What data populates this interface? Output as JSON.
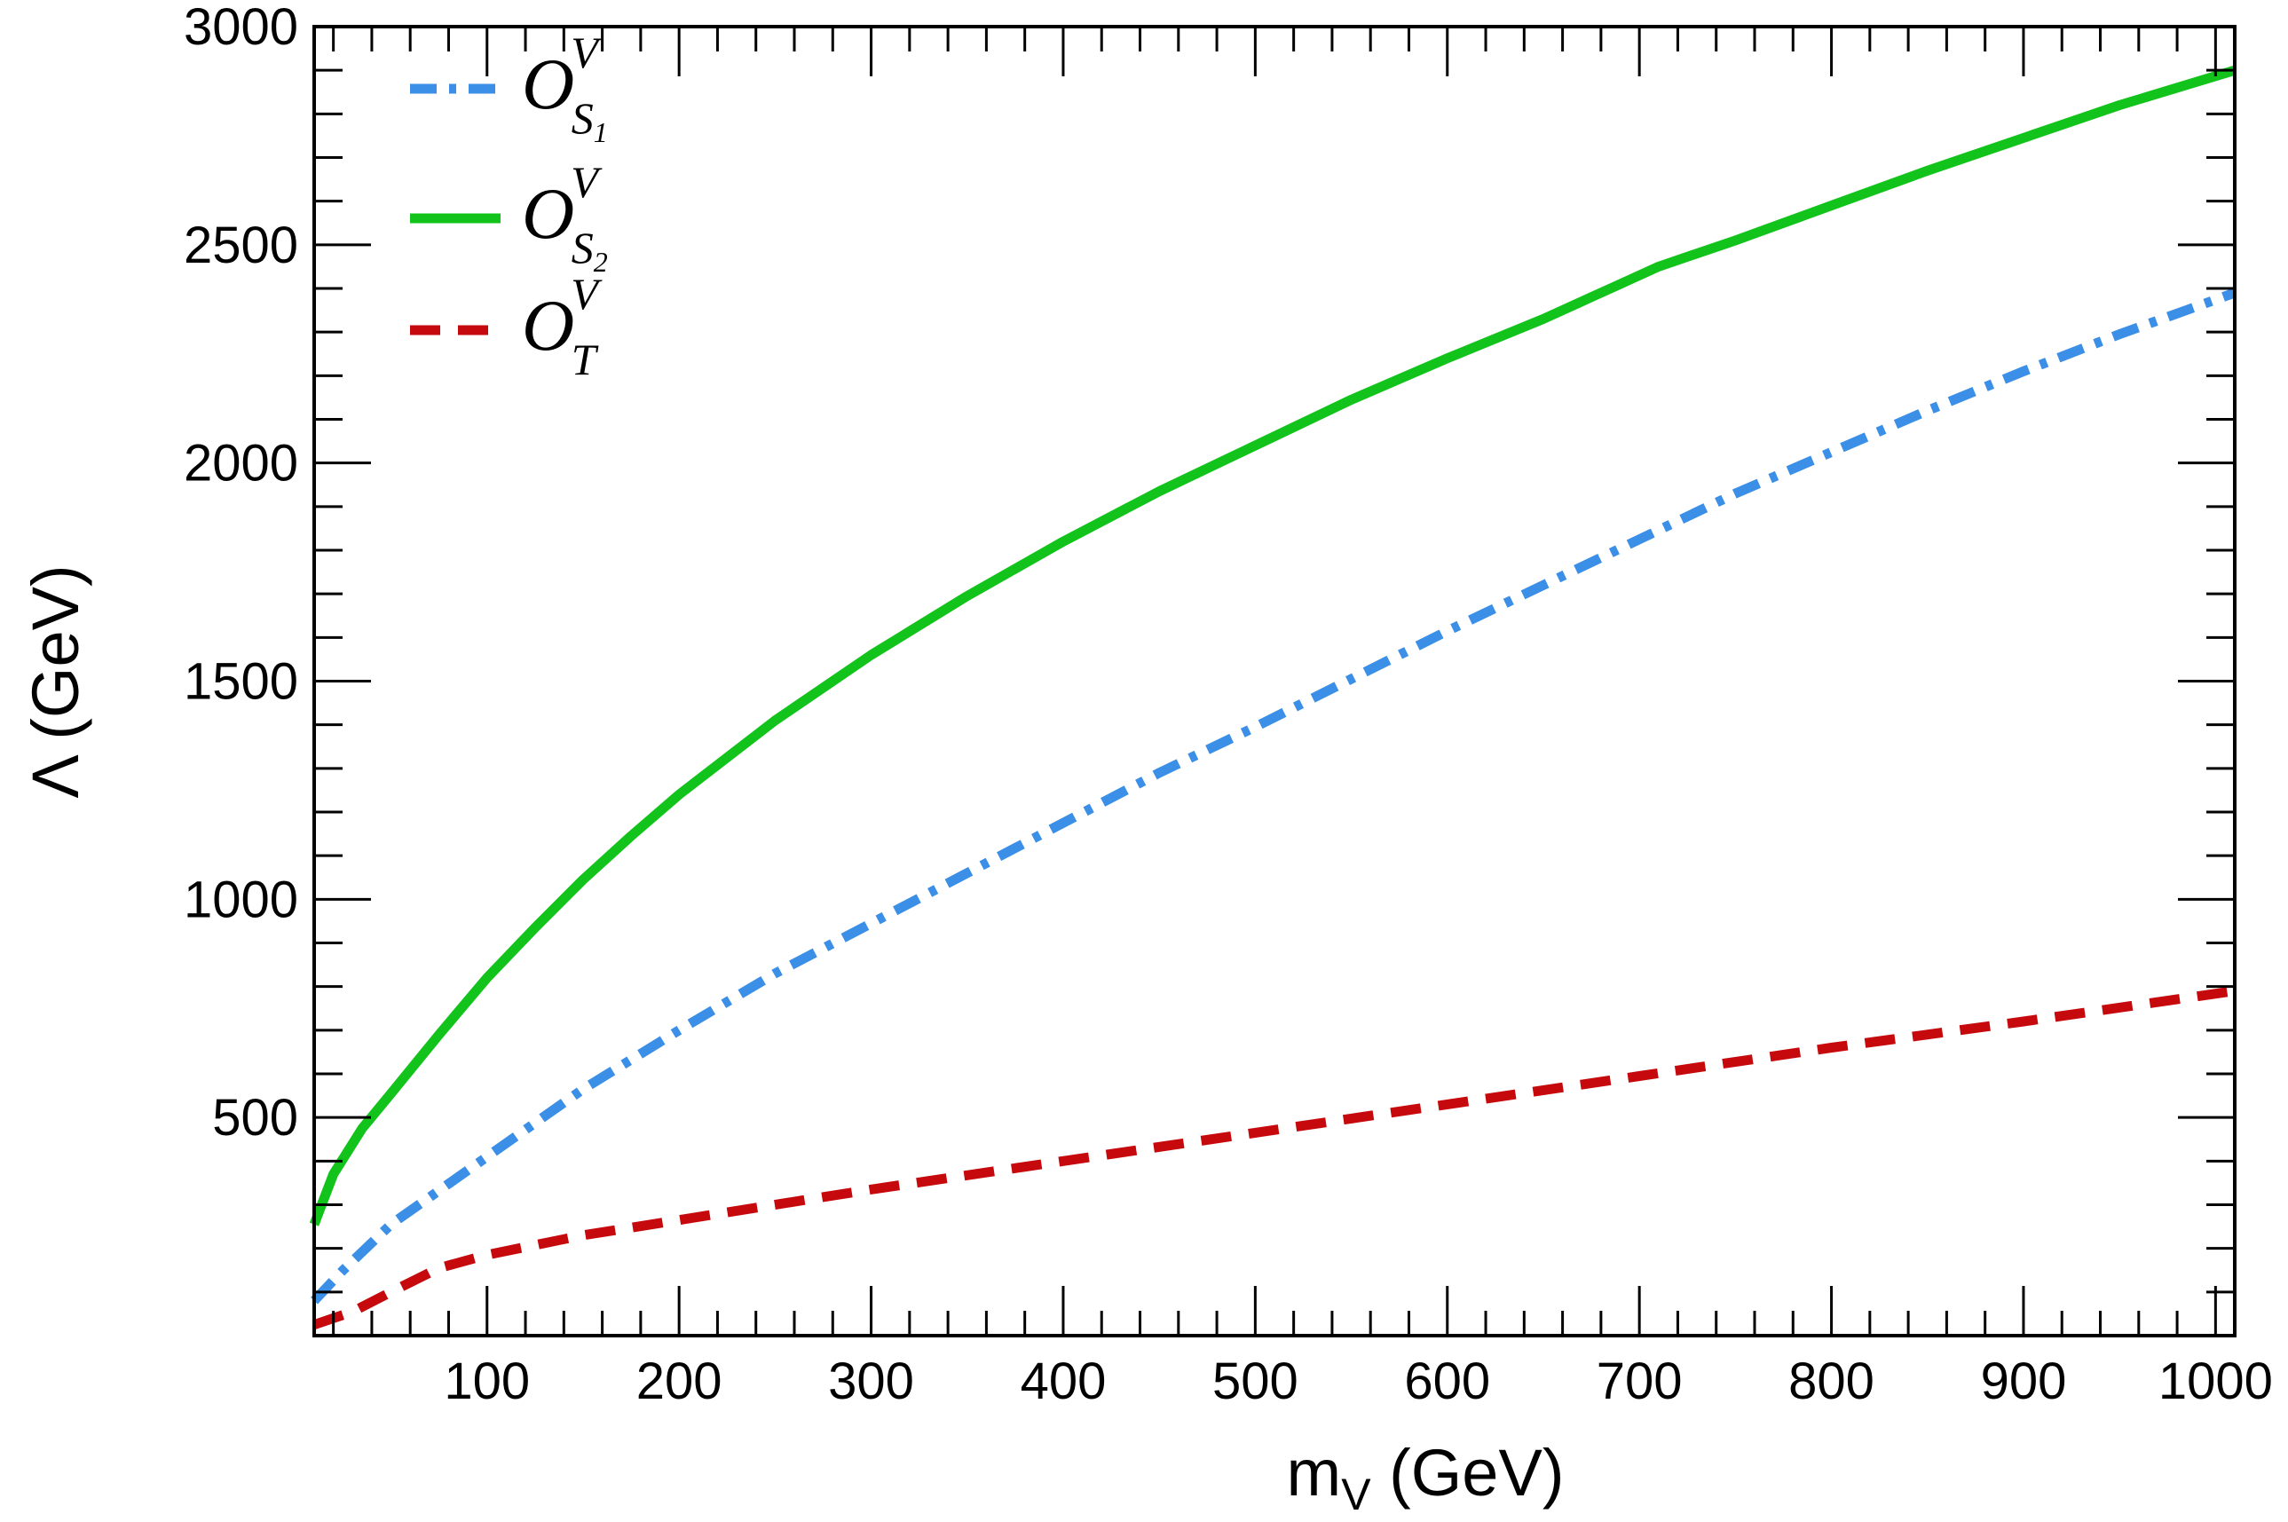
{
  "chart_data": {
    "type": "line",
    "title": "",
    "xlabel": {
      "main": "m",
      "sub": "V",
      "unit": " (GeV)"
    },
    "ylabel": "Λ (GeV)",
    "xlim": [
      10,
      1010
    ],
    "ylim": [
      0,
      3000
    ],
    "xticks": [
      100,
      200,
      300,
      400,
      500,
      600,
      700,
      800,
      900,
      1000
    ],
    "xtick_labels": [
      "100",
      "200",
      "300",
      "400",
      "500",
      "600",
      "700",
      "800",
      "900",
      "1000"
    ],
    "yticks": [
      500,
      1000,
      1500,
      2000,
      2500,
      3000
    ],
    "ytick_labels": [
      "500",
      "1000",
      "1500",
      "2000",
      "2500",
      "3000"
    ],
    "grid": false,
    "legend_position": "top-left",
    "series": [
      {
        "legend_base": "O",
        "legend_sup": "V",
        "legend_sub": "S",
        "legend_subsub": "1",
        "color": "#3b8fe6",
        "style": "dash-dot",
        "x": [
          10,
          25,
          50,
          100,
          150,
          200,
          250,
          300,
          350,
          400,
          450,
          500,
          550,
          600,
          650,
          700,
          750,
          800,
          850,
          900,
          950,
          1010
        ],
        "y": [
          80,
          150,
          255,
          410,
          565,
          700,
          830,
          945,
          1060,
          1175,
          1290,
          1395,
          1505,
          1615,
          1720,
          1825,
          1930,
          2025,
          2120,
          2210,
          2295,
          2390
        ]
      },
      {
        "legend_base": "O",
        "legend_sup": "V",
        "legend_sub": "S",
        "legend_subsub": "2",
        "color": "#11c31a",
        "style": "solid",
        "x": [
          10,
          20,
          35,
          50,
          75,
          100,
          125,
          150,
          175,
          200,
          250,
          300,
          350,
          400,
          450,
          500,
          550,
          600,
          650,
          675,
          690,
          710,
          750,
          800,
          850,
          900,
          950,
          1010
        ],
        "y": [
          255,
          370,
          475,
          555,
          690,
          820,
          935,
          1045,
          1145,
          1240,
          1410,
          1560,
          1695,
          1820,
          1935,
          2040,
          2145,
          2240,
          2330,
          2380,
          2410,
          2450,
          2510,
          2590,
          2670,
          2745,
          2820,
          2900
        ]
      },
      {
        "legend_base": "O",
        "legend_sup": "V",
        "legend_sub": "T",
        "legend_subsub": "",
        "color": "#c5090c",
        "style": "dashed",
        "x": [
          10,
          30,
          50,
          75,
          100,
          150,
          200,
          300,
          400,
          500,
          600,
          700,
          800,
          900,
          1010
        ],
        "y": [
          25,
          55,
          100,
          155,
          185,
          230,
          265,
          335,
          400,
          465,
          530,
          595,
          660,
          720,
          790
        ]
      }
    ]
  }
}
